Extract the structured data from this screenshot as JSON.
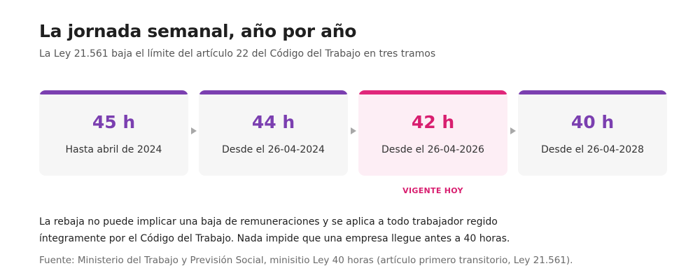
{
  "title": "La jornada semanal, año por año",
  "subtitle": "La Ley 21.561 baja el límite del artículo 22 del Código del Trabajo en tres tramos",
  "colors": {
    "accent": "#7b3fb0",
    "current": "#d81e6f",
    "card_bg": "#f6f6f6",
    "current_bg": "#fdeef5"
  },
  "steps": [
    {
      "hours": "45 h",
      "date": "Hasta abril de 2024",
      "current": false
    },
    {
      "hours": "44 h",
      "date": "Desde el 26-04-2024",
      "current": false
    },
    {
      "hours": "42 h",
      "date": "Desde el 26-04-2026",
      "current": true
    },
    {
      "hours": "40 h",
      "date": "Desde el 26-04-2028",
      "current": false
    }
  ],
  "current_label": "VIGENTE HOY",
  "note": {
    "line1": "La rebaja no puede implicar una baja de remuneraciones y se aplica a todo trabajador regido",
    "line2": "íntegramente por el Código del Trabajo. Nada impide que una empresa llegue antes a 40 horas."
  },
  "source": "Fuente: Ministerio del Trabajo y Previsión Social, minisitio Ley 40 horas (artículo primero transitorio, Ley 21.561)."
}
